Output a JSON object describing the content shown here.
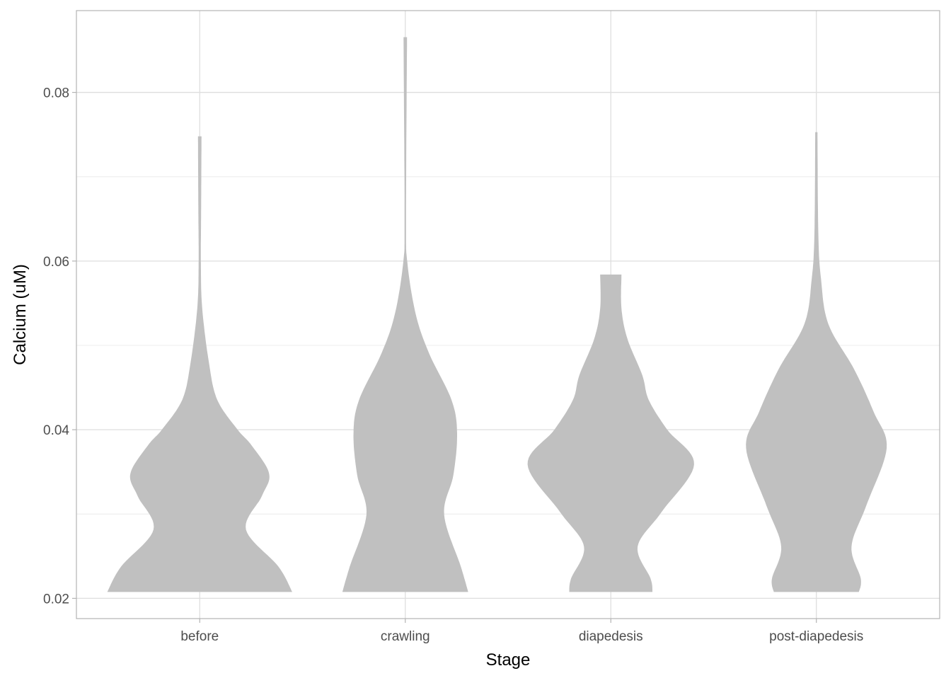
{
  "chart_data": {
    "type": "violin",
    "title": "",
    "xlabel": "Stage",
    "ylabel": "Calcium (uM)",
    "categories": [
      "before",
      "crawling",
      "diapedesis",
      "post-diapedesis"
    ],
    "xlim": [
      0.4,
      4.6
    ],
    "ylim": [
      0.0176,
      0.0897
    ],
    "yticks": [
      0.02,
      0.04,
      0.06,
      0.08
    ],
    "ytick_labels": [
      "0.02",
      "0.04",
      "0.06",
      "0.08"
    ],
    "yminor": [
      0.03,
      0.05,
      0.07
    ],
    "grid": true,
    "fill_color": "#c0c0c0",
    "max_half_width": 0.45,
    "series": [
      {
        "category": "before",
        "profile": [
          [
            0.02076,
            1.0
          ],
          [
            0.02378,
            0.85
          ],
          [
            0.02815,
            0.5
          ],
          [
            0.0321,
            0.67
          ],
          [
            0.03479,
            0.75
          ],
          [
            0.03815,
            0.56
          ],
          [
            0.04,
            0.41
          ],
          [
            0.04353,
            0.19
          ],
          [
            0.0479,
            0.1
          ],
          [
            0.05437,
            0.027
          ],
          [
            0.05975,
            0.012
          ],
          [
            0.0658,
            0.015
          ],
          [
            0.07479,
            0.019
          ]
        ]
      },
      {
        "category": "crawling",
        "profile": [
          [
            0.02076,
            0.68
          ],
          [
            0.02378,
            0.6
          ],
          [
            0.02992,
            0.42
          ],
          [
            0.03462,
            0.52
          ],
          [
            0.03958,
            0.56
          ],
          [
            0.04353,
            0.5
          ],
          [
            0.04899,
            0.26
          ],
          [
            0.05361,
            0.115
          ],
          [
            0.05975,
            0.023
          ],
          [
            0.06513,
            0.008
          ],
          [
            0.08655,
            0.019
          ]
        ]
      },
      {
        "category": "diapedesis",
        "profile": [
          [
            0.02076,
            0.45
          ],
          [
            0.02235,
            0.43
          ],
          [
            0.02613,
            0.29
          ],
          [
            0.03025,
            0.55
          ],
          [
            0.03588,
            0.9
          ],
          [
            0.04,
            0.61
          ],
          [
            0.04353,
            0.41
          ],
          [
            0.04647,
            0.34
          ],
          [
            0.05076,
            0.18
          ],
          [
            0.05437,
            0.115
          ],
          [
            0.0584,
            0.115
          ]
        ]
      },
      {
        "category": "post-diapedesis",
        "profile": [
          [
            0.02076,
            0.46
          ],
          [
            0.02235,
            0.48
          ],
          [
            0.02613,
            0.38
          ],
          [
            0.03101,
            0.54
          ],
          [
            0.03782,
            0.76
          ],
          [
            0.0421,
            0.62
          ],
          [
            0.04714,
            0.41
          ],
          [
            0.05252,
            0.13
          ],
          [
            0.0579,
            0.05
          ],
          [
            0.06328,
            0.021
          ],
          [
            0.07529,
            0.012
          ]
        ]
      }
    ]
  }
}
